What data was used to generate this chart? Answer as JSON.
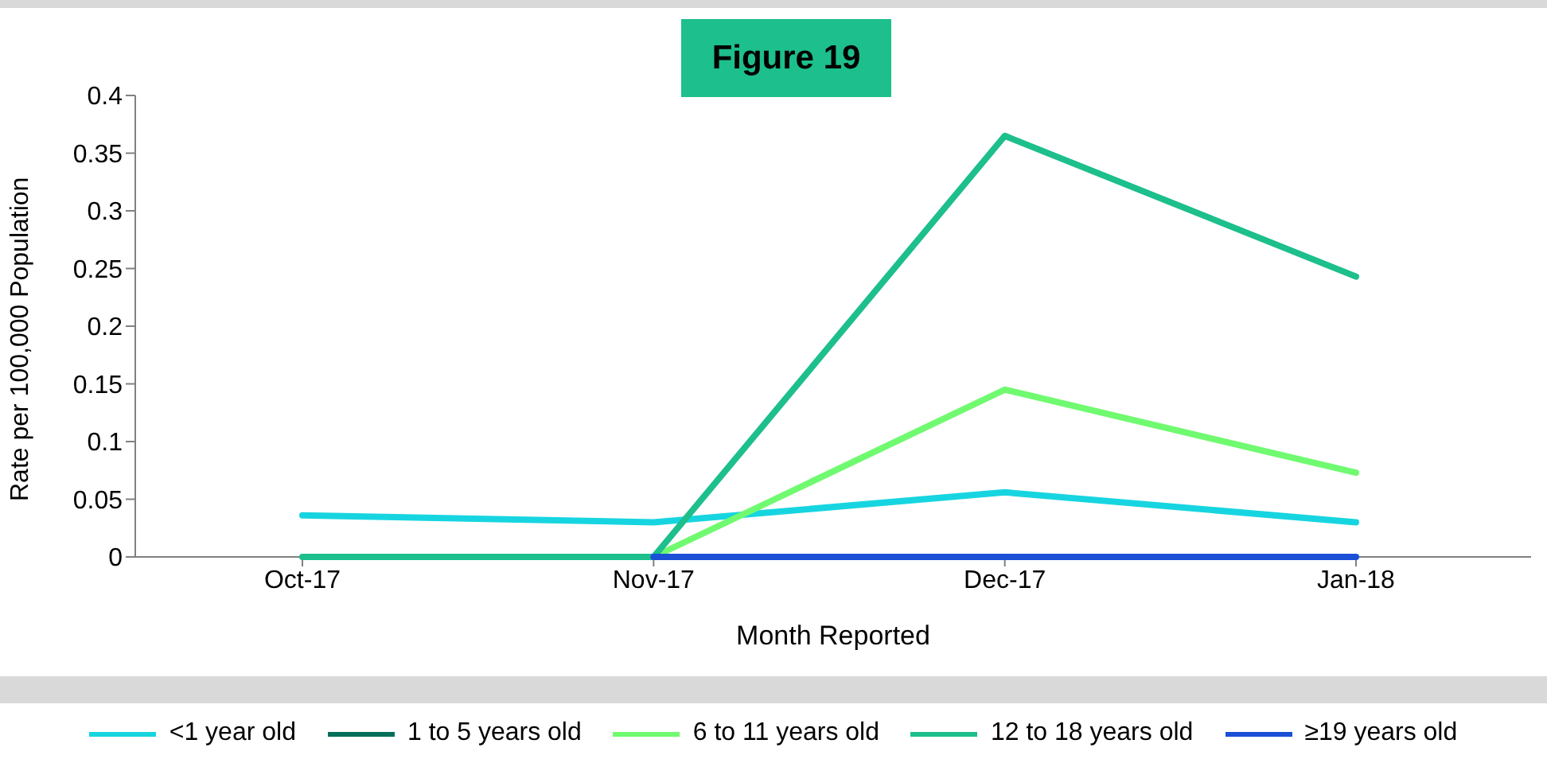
{
  "chart_data": {
    "type": "line",
    "title": "Figure 19",
    "xlabel": "Month Reported",
    "ylabel": "Rate per 100,000 Population",
    "categories": [
      "Oct-17",
      "Nov-17",
      "Dec-17",
      "Jan-18"
    ],
    "series": [
      {
        "name": "<1 year old",
        "color": "#17d5e0",
        "values": [
          0.036,
          0.03,
          0.056,
          0.03
        ]
      },
      {
        "name": "1 to 5 years old",
        "color": "#006e5a",
        "values": [
          null,
          null,
          null,
          null
        ]
      },
      {
        "name": "6 to 11 years old",
        "color": "#70fa70",
        "values": [
          null,
          0,
          0.145,
          0.073
        ]
      },
      {
        "name": "12 to 18 years old",
        "color": "#1dbf8c",
        "values": [
          0,
          0,
          0.365,
          0.243
        ]
      },
      {
        "name": "≥19 years old",
        "color": "#1a4fd6",
        "values": [
          null,
          0,
          0,
          0
        ]
      }
    ],
    "ylim": [
      0,
      0.4
    ],
    "yticks": [
      0,
      0.05,
      0.1,
      0.15,
      0.2,
      0.25,
      0.3,
      0.35,
      0.4
    ],
    "grid": false,
    "legend": "bottom",
    "marker": "none",
    "line_style": "solid"
  }
}
